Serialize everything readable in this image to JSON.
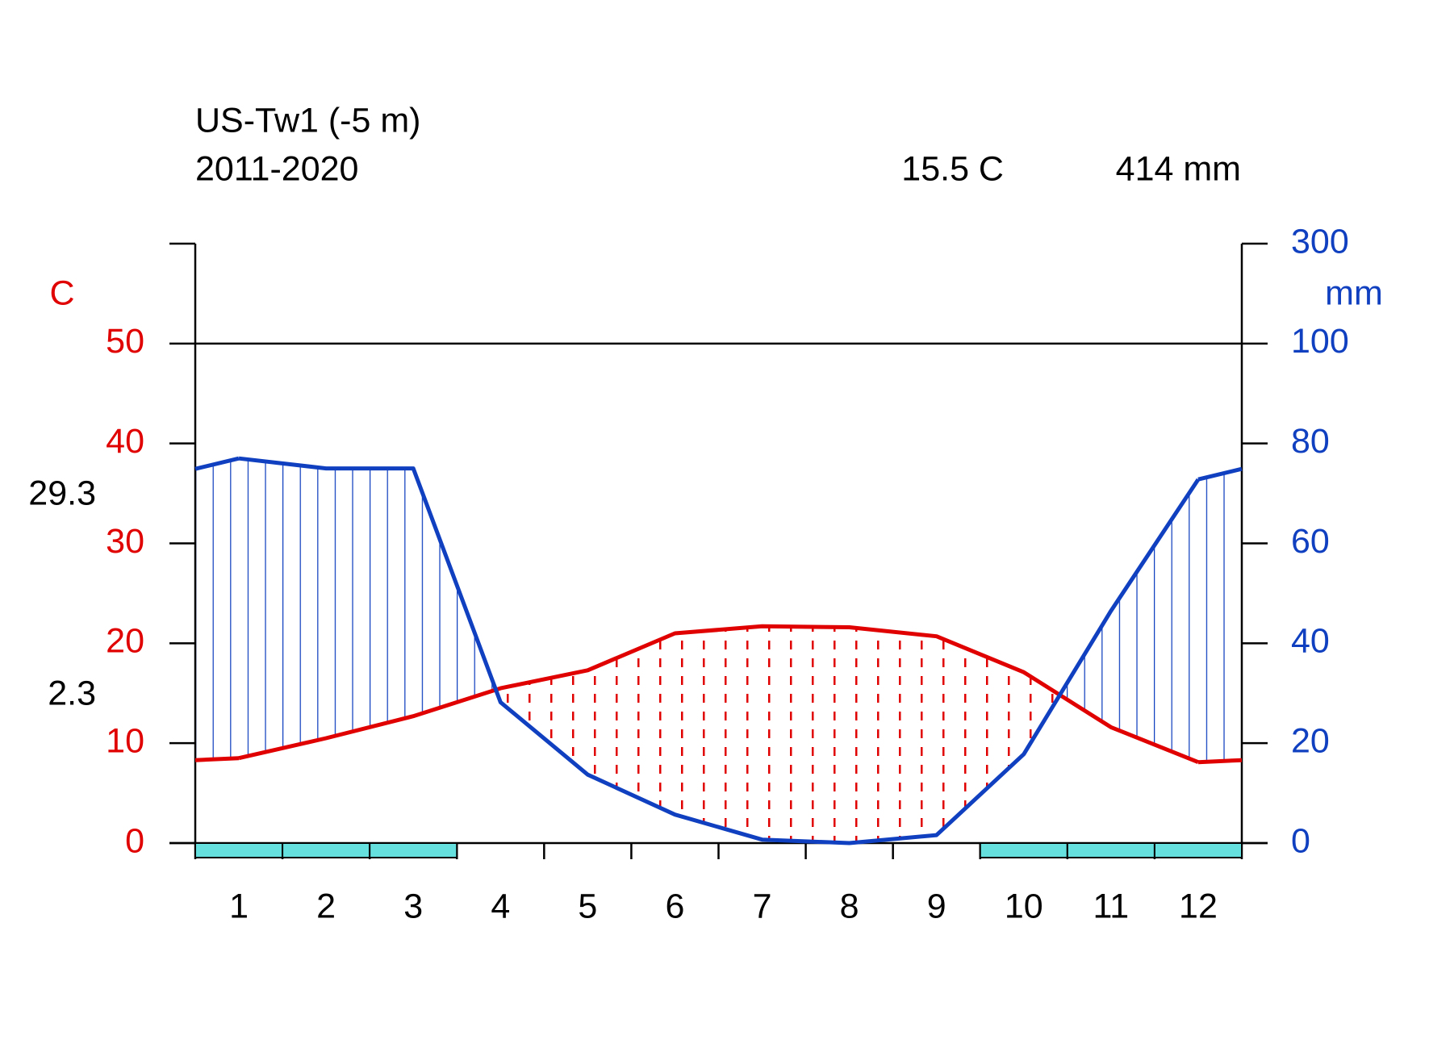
{
  "chart_data": {
    "type": "climate",
    "title": "US-Tw1 (-5 m)",
    "subtitle": "2011-2020",
    "mean_temperature_label": "15.5 C",
    "total_precipitation_label": "414 mm",
    "ylabel": "C",
    "y2label": "mm",
    "max_temp_label": "29.3",
    "min_temp_label": "2.3",
    "categories": [
      "1",
      "2",
      "3",
      "4",
      "5",
      "6",
      "7",
      "8",
      "9",
      "10",
      "11",
      "12"
    ],
    "series": [
      {
        "name": "temperature",
        "color": "#e00000",
        "values": [
          8.5,
          10.5,
          12.7,
          15.5,
          17.3,
          21.0,
          21.7,
          21.6,
          20.7,
          17.1,
          11.6,
          8.1
        ]
      },
      {
        "name": "precipitation",
        "color": "#1040c0",
        "axis": "y2",
        "values": [
          77,
          75,
          75,
          28.2,
          13.7,
          5.7,
          0.7,
          0,
          1.6,
          17.8,
          46.5,
          72.8
        ]
      }
    ],
    "frost": [
      true,
      true,
      true,
      false,
      false,
      false,
      false,
      false,
      false,
      true,
      true,
      true
    ],
    "frost_color": "#66e0de",
    "ylim": [
      0,
      60
    ],
    "yticks": [
      0,
      10,
      20,
      30,
      40,
      50
    ],
    "y2lim": [
      0,
      300
    ],
    "y2ticks": [
      0,
      20,
      40,
      60,
      80,
      100,
      300
    ],
    "y2break": 100
  }
}
